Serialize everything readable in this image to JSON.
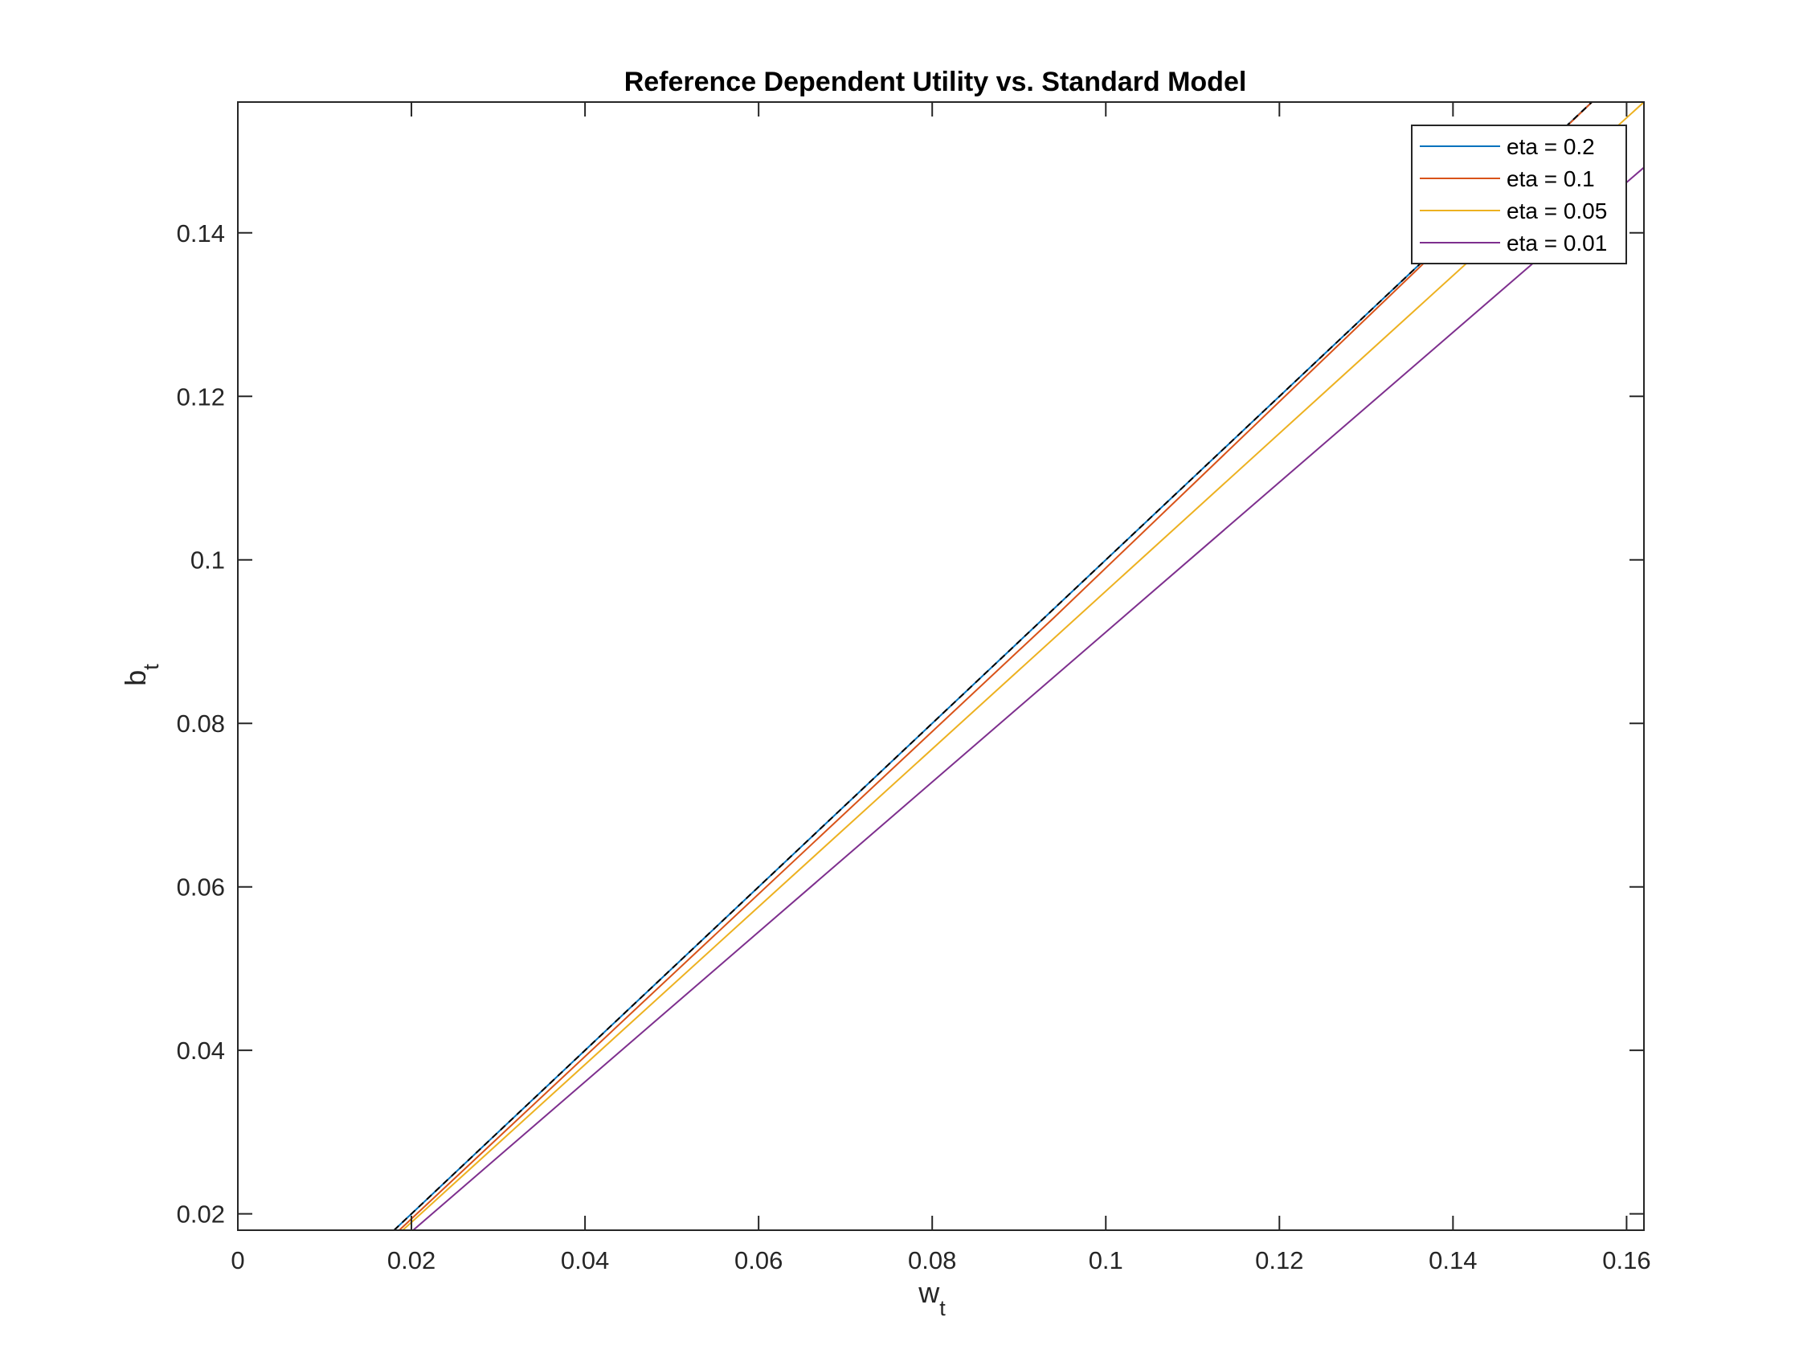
{
  "chart_data": {
    "type": "line",
    "title": "Reference Dependent Utility vs. Standard Model",
    "xlabel": "w",
    "xlabel_subscript": "t",
    "ylabel": "b",
    "ylabel_subscript": "t",
    "xlim": [
      0,
      0.162
    ],
    "ylim": [
      0.018,
      0.156
    ],
    "xticks": [
      0,
      0.02,
      0.04,
      0.06,
      0.08,
      0.1,
      0.12,
      0.14,
      0.16
    ],
    "xtick_labels": [
      "0",
      "0.02",
      "0.04",
      "0.06",
      "0.08",
      "0.1",
      "0.12",
      "0.14",
      "0.16"
    ],
    "yticks": [
      0.02,
      0.04,
      0.06,
      0.08,
      0.1,
      0.12,
      0.14
    ],
    "ytick_labels": [
      "0.02",
      "0.04",
      "0.06",
      "0.08",
      "0.1",
      "0.12",
      "0.14"
    ],
    "grid": false,
    "legend_position": "top-right",
    "series": [
      {
        "name": "eta = 0.2",
        "color": "#0072BD",
        "x": [
          0.018,
          0.157
        ],
        "y": [
          0.018,
          0.157
        ]
      },
      {
        "name": "eta = 0.1",
        "color": "#D95319",
        "x": [
          0.0186,
          0.094,
          0.157
        ],
        "y": [
          0.018,
          0.0929,
          0.157
        ]
      },
      {
        "name": "eta = 0.05",
        "color": "#EDB120",
        "x": [
          0.019,
          0.162
        ],
        "y": [
          0.018,
          0.156
        ]
      },
      {
        "name": "eta = 0.01",
        "color": "#7E2F8E",
        "x": [
          0.0202,
          0.162
        ],
        "y": [
          0.018,
          0.148
        ]
      },
      {
        "color": "#000000",
        "dashed": true,
        "x": [
          0.018,
          0.157
        ],
        "y": [
          0.018,
          0.157
        ]
      }
    ]
  }
}
